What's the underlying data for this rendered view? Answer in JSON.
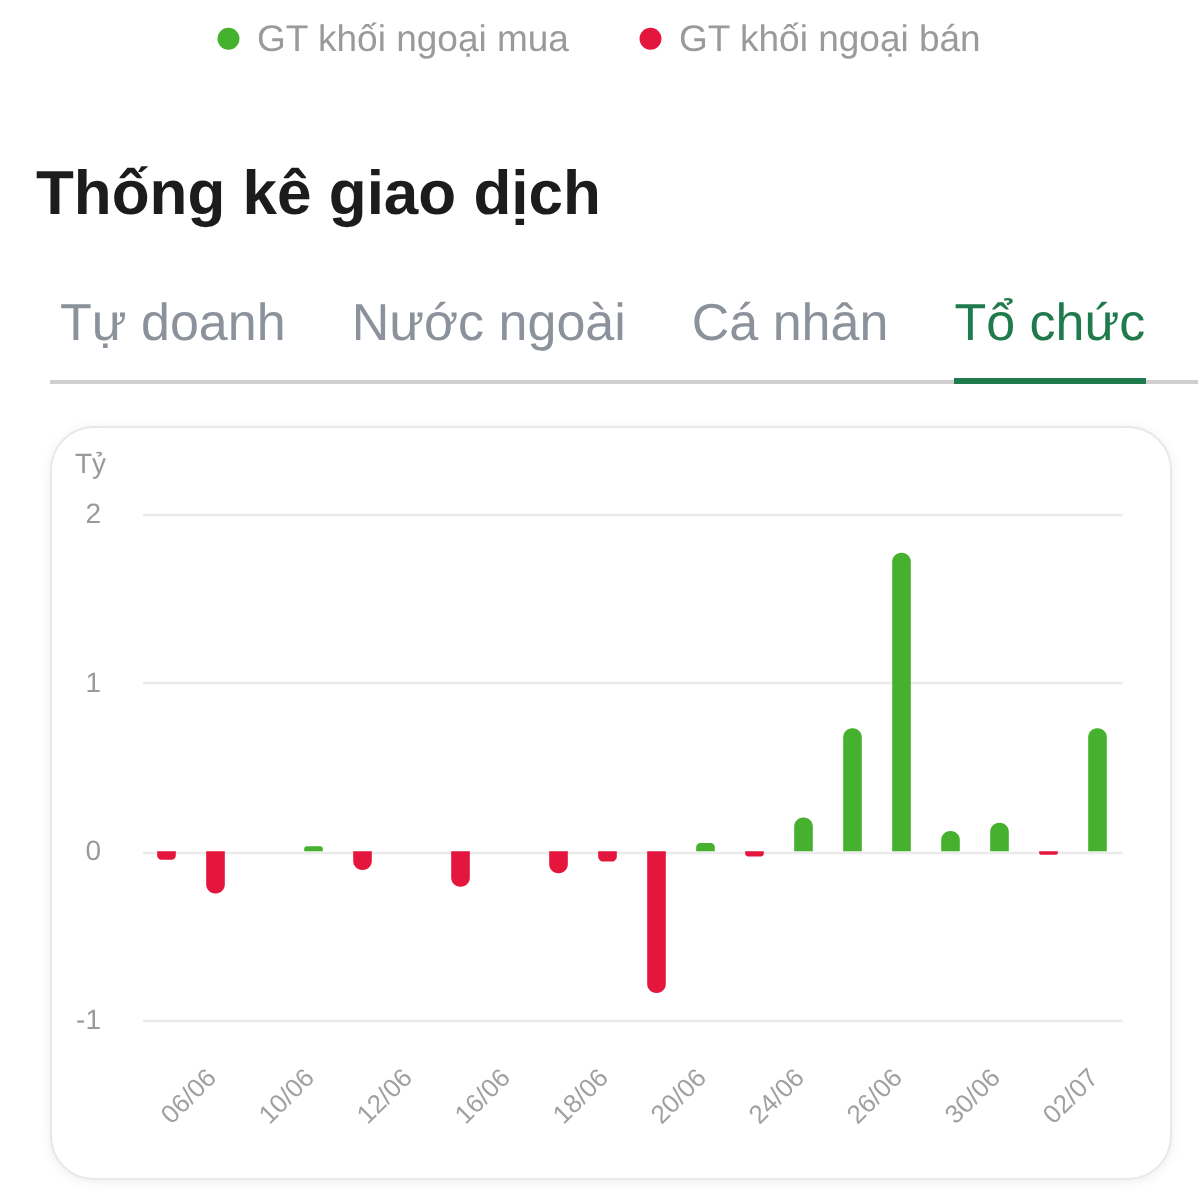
{
  "chart_data": {
    "type": "bar",
    "title": "Thống kê giao dịch",
    "ylabel": "Tỷ",
    "annotations": [
      "Tự doanh",
      "Nước ngoài",
      "Cá nhân",
      "Tổ chức"
    ],
    "categories": [
      null,
      "06/06",
      null,
      "10/06",
      null,
      "12/06",
      null,
      "16/06",
      null,
      "18/06",
      null,
      "20/06",
      null,
      "24/06",
      null,
      "26/06",
      null,
      "30/06",
      null,
      "02/07"
    ],
    "series": [
      {
        "name": "GT khối ngoại mua",
        "color": "#45b12e",
        "values": [
          null,
          null,
          null,
          0.03,
          null,
          null,
          null,
          null,
          null,
          null,
          null,
          0.05,
          null,
          0.2,
          0.73,
          1.77,
          0.12,
          0.17,
          null,
          0.73
        ]
      },
      {
        "name": "GT khối ngoại bán",
        "color": "#e5163d",
        "values": [
          -0.05,
          -0.25,
          null,
          null,
          -0.11,
          null,
          -0.21,
          null,
          -0.13,
          -0.06,
          -0.84,
          null,
          -0.03,
          null,
          null,
          null,
          null,
          null,
          -0.02,
          null
        ]
      }
    ],
    "ylim": [
      -1,
      2
    ],
    "yticks": [
      -1,
      0,
      1,
      2
    ],
    "grid": "y",
    "legend": "top"
  }
}
